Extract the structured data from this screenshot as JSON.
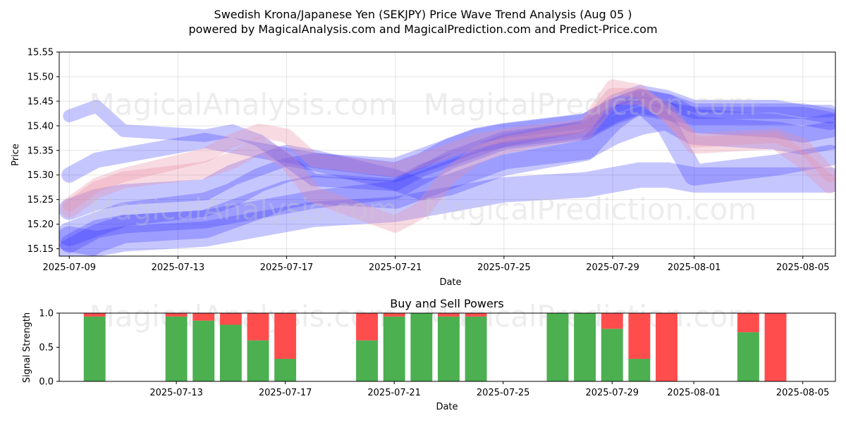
{
  "title_line1": "Swedish Krona/Japanese Yen (SEKJPY) Price Wave Trend Analysis (Aug 05 )",
  "title_line2": "powered by MagicalAnalysis.com and MagicalPrediction.com and Predict-Price.com",
  "watermarks": [
    "MagicalAnalysis.com",
    "MagicalPrediction.com"
  ],
  "colors": {
    "buy": "#4caf50",
    "sell": "#ff4d4d",
    "wave_blue": "#3333ff",
    "wave_red": "#e98fa5"
  },
  "chart_data": [
    {
      "type": "area",
      "title": "",
      "xlabel": "Date",
      "ylabel": "Price",
      "ylim": [
        15.135,
        15.55
      ],
      "xlim": [
        "2025-07-09",
        "2025-08-06"
      ],
      "grid": true,
      "x_ticks": [
        "2025-07-09",
        "2025-07-13",
        "2025-07-17",
        "2025-07-21",
        "2025-07-25",
        "2025-07-29",
        "2025-08-01",
        "2025-08-05"
      ],
      "y_ticks": [
        15.15,
        15.2,
        15.25,
        15.3,
        15.35,
        15.4,
        15.45,
        15.5,
        15.55
      ],
      "x": [
        "2025-07-09",
        "2025-07-10",
        "2025-07-11",
        "2025-07-14",
        "2025-07-15",
        "2025-07-16",
        "2025-07-17",
        "2025-07-18",
        "2025-07-21",
        "2025-07-22",
        "2025-07-23",
        "2025-07-24",
        "2025-07-25",
        "2025-07-28",
        "2025-07-29",
        "2025-07-30",
        "2025-07-31",
        "2025-08-01",
        "2025-08-04",
        "2025-08-05",
        "2025-08-06"
      ],
      "series": [
        {
          "color": "blue",
          "values": [
            15.18,
            15.2,
            15.22,
            15.24,
            15.26,
            15.29,
            15.31,
            15.32,
            15.31,
            15.33,
            15.35,
            15.37,
            15.38,
            15.4,
            15.43,
            15.45,
            15.44,
            15.41,
            15.4,
            15.39,
            15.4
          ]
        },
        {
          "color": "blue",
          "values": [
            15.16,
            15.19,
            15.2,
            15.21,
            15.22,
            15.23,
            15.24,
            15.25,
            15.27,
            15.3,
            15.33,
            15.35,
            15.37,
            15.39,
            15.42,
            15.44,
            15.43,
            15.42,
            15.42,
            15.42,
            15.41
          ]
        },
        {
          "color": "blue",
          "values": [
            15.14,
            15.17,
            15.19,
            15.2,
            15.22,
            15.24,
            15.26,
            15.27,
            15.26,
            15.28,
            15.3,
            15.32,
            15.34,
            15.36,
            15.39,
            15.41,
            15.42,
            15.39,
            15.38,
            15.37,
            15.38
          ]
        },
        {
          "color": "blue",
          "values": [
            15.3,
            15.33,
            15.34,
            15.37,
            15.36,
            15.35,
            15.34,
            15.33,
            15.31,
            15.33,
            15.36,
            15.38,
            15.39,
            15.41,
            15.44,
            15.46,
            15.45,
            15.43,
            15.43,
            15.43,
            15.42
          ]
        },
        {
          "color": "blue",
          "values": [
            15.23,
            15.25,
            15.26,
            15.27,
            15.3,
            15.32,
            15.34,
            15.33,
            15.29,
            15.27,
            15.28,
            15.3,
            15.32,
            15.35,
            15.41,
            15.45,
            15.4,
            15.3,
            15.32,
            15.33,
            15.34
          ]
        },
        {
          "color": "blue",
          "values": [
            15.42,
            15.44,
            15.39,
            15.38,
            15.39,
            15.37,
            15.33,
            15.29,
            15.28,
            15.31,
            15.33,
            15.35,
            15.37,
            15.4,
            15.45,
            15.47,
            15.46,
            15.44,
            15.44,
            15.43,
            15.43
          ]
        },
        {
          "color": "blue",
          "values": [
            15.17,
            15.16,
            15.17,
            15.18,
            15.19,
            15.2,
            15.21,
            15.22,
            15.23,
            15.24,
            15.25,
            15.26,
            15.27,
            15.28,
            15.29,
            15.3,
            15.3,
            15.29,
            15.29,
            15.29,
            15.29
          ]
        },
        {
          "color": "red",
          "values": [
            15.24,
            15.28,
            15.3,
            15.34,
            15.37,
            15.39,
            15.38,
            15.33,
            15.31,
            15.33,
            15.35,
            15.37,
            15.38,
            15.4,
            15.48,
            15.47,
            15.42,
            15.37,
            15.38,
            15.36,
            15.3
          ]
        },
        {
          "color": "red",
          "values": [
            15.23,
            15.27,
            15.29,
            15.31,
            15.33,
            15.36,
            15.33,
            15.26,
            15.2,
            15.23,
            15.3,
            15.34,
            15.36,
            15.39,
            15.46,
            15.46,
            15.43,
            15.36,
            15.37,
            15.33,
            15.28
          ]
        }
      ]
    },
    {
      "type": "bar",
      "title": "Buy and Sell Powers",
      "xlabel": "Date",
      "ylabel": "Signal Strength",
      "ylim": [
        0,
        1.0
      ],
      "y_ticks": [
        0.0,
        0.5,
        1.0
      ],
      "x_ticks": [
        "2025-07-13",
        "2025-07-17",
        "2025-07-21",
        "2025-07-25",
        "2025-07-29",
        "2025-08-01",
        "2025-08-05"
      ],
      "grid": false,
      "categories": [
        "2025-07-10",
        "2025-07-13",
        "2025-07-14",
        "2025-07-15",
        "2025-07-16",
        "2025-07-17",
        "2025-07-20",
        "2025-07-21",
        "2025-07-22",
        "2025-07-23",
        "2025-07-24",
        "2025-07-27",
        "2025-07-28",
        "2025-07-29",
        "2025-07-30",
        "2025-07-31",
        "2025-08-03",
        "2025-08-04"
      ],
      "series": [
        {
          "name": "Buy",
          "values": [
            0.95,
            0.95,
            0.89,
            0.83,
            0.6,
            0.33,
            0.6,
            0.95,
            1.0,
            0.95,
            0.95,
            1.0,
            1.0,
            0.77,
            0.33,
            0.0,
            0.72,
            0.0
          ]
        },
        {
          "name": "Sell",
          "values": [
            0.05,
            0.05,
            0.11,
            0.17,
            0.4,
            0.67,
            0.4,
            0.05,
            0.0,
            0.05,
            0.05,
            0.0,
            0.0,
            0.23,
            0.67,
            1.0,
            0.28,
            1.0
          ]
        }
      ]
    }
  ]
}
